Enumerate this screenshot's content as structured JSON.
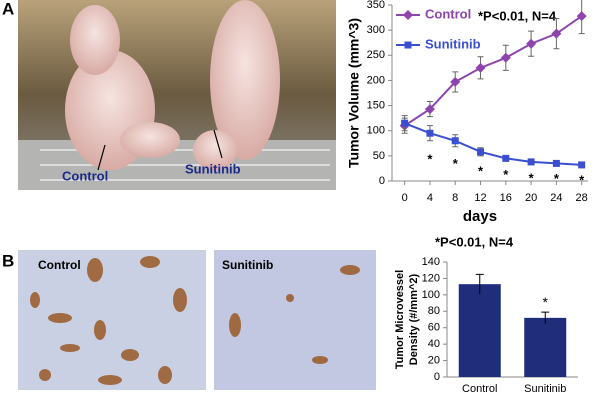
{
  "figure": {
    "panel_labels": [
      "A",
      "B"
    ],
    "photo_a_labels": [
      "Control",
      "Sunitinib"
    ],
    "photo_b_labels": [
      "Control",
      "Sunitinib"
    ]
  },
  "chart_data": [
    {
      "type": "line",
      "ylabel": "Tumor Volume (mm^3)",
      "xlabel": "days",
      "annotation": "*P<0.01, N=4",
      "x": [
        0,
        4,
        8,
        12,
        16,
        20,
        24,
        28
      ],
      "xlim": [
        -2,
        29
      ],
      "xticks": [
        0,
        4,
        8,
        12,
        16,
        20,
        24,
        28
      ],
      "ylim": [
        0,
        350
      ],
      "yticks": [
        0,
        50,
        100,
        150,
        200,
        250,
        300,
        350
      ],
      "legend": "upper-left",
      "series": [
        {
          "name": "Control",
          "color": "#8e44ad",
          "marker": "diamond",
          "values": [
            110,
            143,
            197,
            225,
            245,
            273,
            293,
            328
          ],
          "errors": [
            15,
            15,
            20,
            22,
            25,
            25,
            30,
            35
          ]
        },
        {
          "name": "Sunitinib",
          "color": "#3a4fd0",
          "marker": "square",
          "values": [
            115,
            95,
            80,
            58,
            45,
            38,
            35,
            32
          ],
          "errors": [
            15,
            15,
            12,
            8,
            5,
            5,
            4,
            4
          ],
          "point_labels": [
            null,
            "*",
            "*",
            "*",
            "*",
            "*",
            "*",
            "*"
          ]
        }
      ]
    },
    {
      "type": "bar",
      "ylabel": [
        "Tumor Microvessel",
        "Density (#/mm^2)"
      ],
      "annotation": "*P<0.01, N=4",
      "categories": [
        "Control",
        "Sunitinib"
      ],
      "values": [
        113,
        72
      ],
      "errors": [
        12,
        7
      ],
      "value_marks": [
        null,
        "*"
      ],
      "color": "#1f2d7a",
      "ylim": [
        0,
        140
      ],
      "yticks": [
        0,
        20,
        40,
        60,
        80,
        100,
        120,
        140
      ]
    }
  ]
}
